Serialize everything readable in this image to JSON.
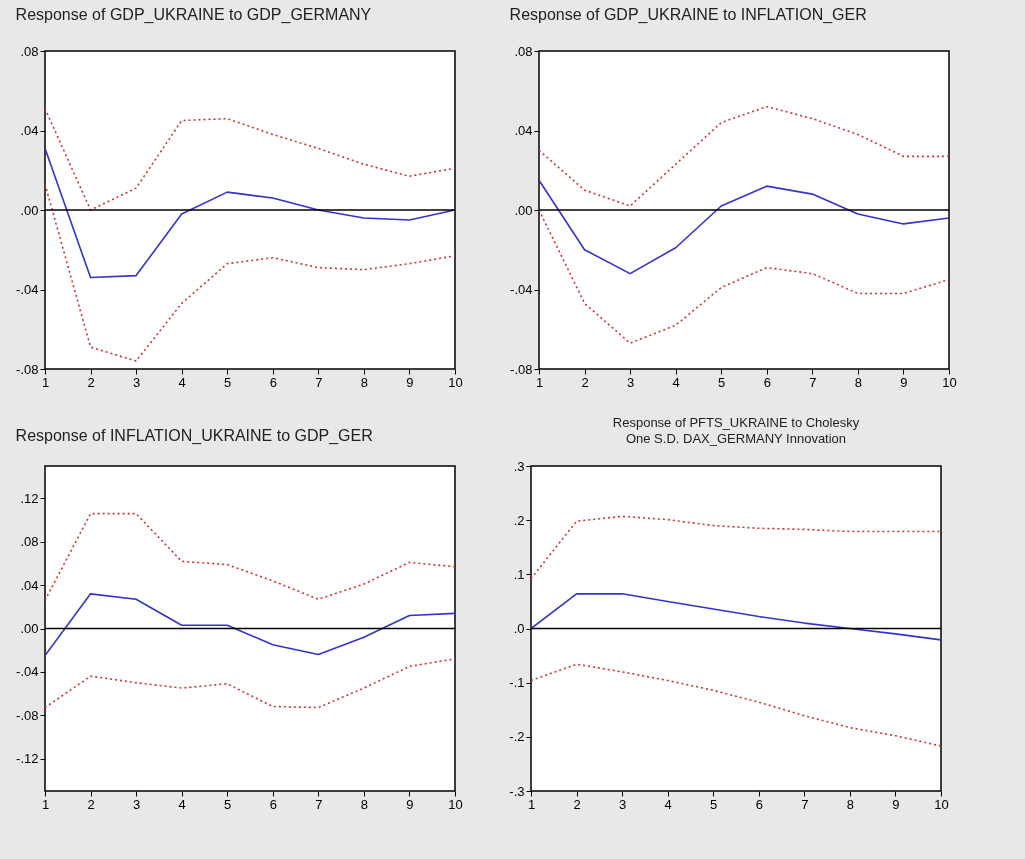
{
  "chart_data": [
    {
      "type": "line",
      "title": "Response of GDP_UKRAINE to GDP_GERMANY",
      "x": [
        1,
        2,
        3,
        4,
        5,
        6,
        7,
        8,
        9,
        10
      ],
      "xlim": [
        1,
        10
      ],
      "xticks": [
        1,
        2,
        3,
        4,
        5,
        6,
        7,
        8,
        9,
        10
      ],
      "ylim": [
        -0.08,
        0.08
      ],
      "yticks": [
        {
          "value": -0.08,
          "label": "-.08"
        },
        {
          "value": -0.04,
          "label": "-.04"
        },
        {
          "value": 0,
          "label": ".00"
        },
        {
          "value": 0.04,
          "label": ".04"
        },
        {
          "value": 0.08,
          "label": ".08"
        }
      ],
      "grid": false,
      "ref_lines": [
        {
          "axis": "y",
          "value": 0,
          "color": "#000000"
        }
      ],
      "series": [
        {
          "color": "#3333cc",
          "line_style": "solid",
          "values": [
            0.031,
            -0.034,
            -0.033,
            -0.002,
            0.009,
            0.006,
            0,
            -0.004,
            -0.005,
            0
          ]
        },
        {
          "color": "#cc3333",
          "line_style": "dotted",
          "values": [
            0.051,
            0,
            0.011,
            0.045,
            0.046,
            0.038,
            0.031,
            0.023,
            0.017,
            0.021
          ]
        },
        {
          "color": "#cc3333",
          "line_style": "dotted",
          "values": [
            0.013,
            -0.069,
            -0.076,
            -0.047,
            -0.027,
            -0.024,
            -0.029,
            -0.03,
            -0.027,
            -0.023
          ]
        }
      ]
    },
    {
      "type": "line",
      "title": "Response of GDP_UKRAINE to INFLATION_GER",
      "x": [
        1,
        2,
        3,
        4,
        5,
        6,
        7,
        8,
        9,
        10
      ],
      "xlim": [
        1,
        10
      ],
      "xticks": [
        1,
        2,
        3,
        4,
        5,
        6,
        7,
        8,
        9,
        10
      ],
      "ylim": [
        -0.08,
        0.08
      ],
      "yticks": [
        {
          "value": -0.08,
          "label": "-.08"
        },
        {
          "value": -0.04,
          "label": "-.04"
        },
        {
          "value": 0,
          "label": ".00"
        },
        {
          "value": 0.04,
          "label": ".04"
        },
        {
          "value": 0.08,
          "label": ".08"
        }
      ],
      "grid": false,
      "ref_lines": [
        {
          "axis": "y",
          "value": 0,
          "color": "#000000"
        }
      ],
      "series": [
        {
          "color": "#3333cc",
          "line_style": "solid",
          "values": [
            0.015,
            -0.02,
            -0.032,
            -0.019,
            0.002,
            0.012,
            0.008,
            -0.002,
            -0.007,
            -0.004
          ]
        },
        {
          "color": "#cc3333",
          "line_style": "dotted",
          "values": [
            0.03,
            0.01,
            0.002,
            0.023,
            0.044,
            0.052,
            0.046,
            0.038,
            0.027,
            0.027
          ]
        },
        {
          "color": "#cc3333",
          "line_style": "dotted",
          "values": [
            0,
            -0.047,
            -0.067,
            -0.058,
            -0.039,
            -0.029,
            -0.032,
            -0.042,
            -0.042,
            -0.035
          ]
        }
      ]
    },
    {
      "type": "line",
      "title": "Response of INFLATION_UKRAINE to GDP_GER",
      "x": [
        1,
        2,
        3,
        4,
        5,
        6,
        7,
        8,
        9,
        10
      ],
      "xlim": [
        1,
        10
      ],
      "xticks": [
        1,
        2,
        3,
        4,
        5,
        6,
        7,
        8,
        9,
        10
      ],
      "ylim": [
        -0.15,
        0.15
      ],
      "yticks": [
        {
          "value": -0.12,
          "label": "-.12"
        },
        {
          "value": -0.08,
          "label": "-.08"
        },
        {
          "value": -0.04,
          "label": "-.04"
        },
        {
          "value": 0,
          "label": ".00"
        },
        {
          "value": 0.04,
          "label": ".04"
        },
        {
          "value": 0.08,
          "label": ".08"
        },
        {
          "value": 0.12,
          "label": ".12"
        }
      ],
      "grid": false,
      "ref_lines": [
        {
          "axis": "y",
          "value": 0,
          "color": "#000000"
        }
      ],
      "series": [
        {
          "color": "#3333cc",
          "line_style": "solid",
          "values": [
            -0.025,
            0.032,
            0.027,
            0.003,
            0.003,
            -0.015,
            -0.024,
            -0.008,
            0.012,
            0.014
          ]
        },
        {
          "color": "#cc3333",
          "line_style": "dotted",
          "values": [
            0.026,
            0.106,
            0.106,
            0.062,
            0.059,
            0.044,
            0.027,
            0.041,
            0.061,
            0.057
          ]
        },
        {
          "color": "#cc3333",
          "line_style": "dotted",
          "values": [
            -0.073,
            -0.044,
            -0.05,
            -0.055,
            -0.051,
            -0.072,
            -0.073,
            -0.055,
            -0.035,
            -0.028
          ]
        }
      ]
    },
    {
      "type": "line",
      "title": "Response of PFTS_UKRAINE to Cholesky",
      "subtitle": "One S.D. DAX_GERMANY Innovation",
      "x": [
        1,
        2,
        3,
        4,
        5,
        6,
        7,
        8,
        9,
        10
      ],
      "xlim": [
        1,
        10
      ],
      "xticks": [
        1,
        2,
        3,
        4,
        5,
        6,
        7,
        8,
        9,
        10
      ],
      "ylim": [
        -0.3,
        0.3
      ],
      "yticks": [
        {
          "value": -0.3,
          "label": "-.3"
        },
        {
          "value": -0.2,
          "label": "-.2"
        },
        {
          "value": -0.1,
          "label": "-.1"
        },
        {
          "value": 0,
          "label": ".0"
        },
        {
          "value": 0.1,
          "label": ".1"
        },
        {
          "value": 0.2,
          "label": ".2"
        },
        {
          "value": 0.3,
          "label": ".3"
        }
      ],
      "grid": false,
      "ref_lines": [
        {
          "axis": "y",
          "value": 0,
          "color": "#000000"
        }
      ],
      "series": [
        {
          "color": "#3333cc",
          "line_style": "solid",
          "values": [
            0,
            0.064,
            0.064,
            0.05,
            0.036,
            0.022,
            0.01,
            0,
            -0.01,
            -0.021
          ]
        },
        {
          "color": "#cc3333",
          "line_style": "dotted",
          "values": [
            0.092,
            0.198,
            0.207,
            0.201,
            0.19,
            0.185,
            0.183,
            0.179,
            0.179,
            0.179
          ]
        },
        {
          "color": "#cc3333",
          "line_style": "dotted",
          "values": [
            -0.096,
            -0.066,
            -0.08,
            -0.096,
            -0.114,
            -0.136,
            -0.161,
            -0.183,
            -0.198,
            -0.217
          ]
        }
      ]
    }
  ]
}
